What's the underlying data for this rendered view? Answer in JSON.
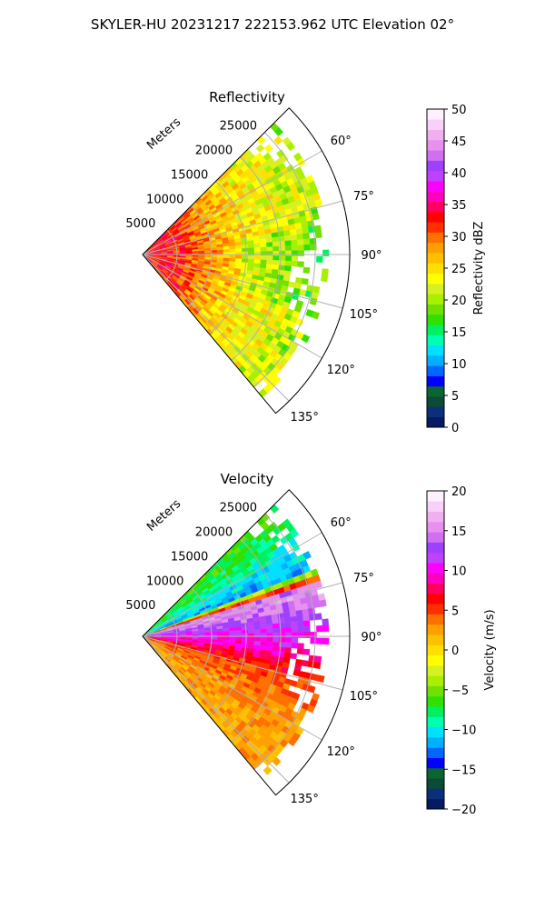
{
  "figure": {
    "title": "SKYLER-HU  20231217  222153.962 UTC Elevation 02°"
  },
  "chart_data": [
    {
      "type": "heatmap",
      "projection": "polar-sector",
      "title": "Reflectivity",
      "radial_label": "Meters",
      "radial_ticks": [
        "5000",
        "10000",
        "15000",
        "20000",
        "25000"
      ],
      "radial_tick_values": [
        5000,
        10000,
        15000,
        20000,
        25000
      ],
      "rlim": [
        0,
        30000
      ],
      "angle_ticks": [
        "60°",
        "75°",
        "90°",
        "105°",
        "120°",
        "135°"
      ],
      "angle_tick_values": [
        60,
        75,
        90,
        105,
        120,
        135
      ],
      "azimuth_range": [
        45,
        140
      ],
      "grid": true,
      "colorbar": {
        "label": "Reflectivity dBZ",
        "ticks": [
          "0",
          "5",
          "10",
          "15",
          "20",
          "25",
          "30",
          "35",
          "40",
          "45",
          "50"
        ],
        "range": [
          0,
          50
        ],
        "colors": [
          "#061a63",
          "#0b2f7a",
          "#0c4a3a",
          "#0a6630",
          "#0000ff",
          "#0066ff",
          "#00b0ff",
          "#00e0ff",
          "#00ffb0",
          "#00f060",
          "#30e000",
          "#70e000",
          "#a8f000",
          "#d8f020",
          "#ffff00",
          "#ffe000",
          "#ffc000",
          "#ffa000",
          "#ff7000",
          "#ff3000",
          "#ff0000",
          "#ff0060",
          "#ff00c0",
          "#ff00ff",
          "#c040ff",
          "#a040ff",
          "#d070f0",
          "#e890f0",
          "#f0b0f0",
          "#f8d0f8",
          "#fff0ff"
        ]
      },
      "field_profile": [
        {
          "range_m": 2000,
          "value": 33
        },
        {
          "range_m": 6000,
          "value": 32
        },
        {
          "range_m": 10000,
          "value": 28
        },
        {
          "range_m": 15000,
          "value": 25
        },
        {
          "range_m": 20000,
          "value": 23
        },
        {
          "range_m": 25000,
          "value": 21
        }
      ]
    },
    {
      "type": "heatmap",
      "projection": "polar-sector",
      "title": "Velocity",
      "radial_label": "Meters",
      "radial_ticks": [
        "5000",
        "10000",
        "15000",
        "20000",
        "25000"
      ],
      "radial_tick_values": [
        5000,
        10000,
        15000,
        20000,
        25000
      ],
      "rlim": [
        0,
        30000
      ],
      "angle_ticks": [
        "60°",
        "75°",
        "90°",
        "105°",
        "120°",
        "135°"
      ],
      "angle_tick_values": [
        60,
        75,
        90,
        105,
        120,
        135
      ],
      "azimuth_range": [
        45,
        140
      ],
      "grid": true,
      "colorbar": {
        "label": "Velocity (m/s)",
        "ticks": [
          "−20",
          "−15",
          "−10",
          "−5",
          "0",
          "5",
          "10",
          "15",
          "20"
        ],
        "range": [
          -20,
          20
        ],
        "colors": [
          "#061a63",
          "#0b2f7a",
          "#0c4a3a",
          "#0a6630",
          "#0000ff",
          "#0066ff",
          "#00b0ff",
          "#00e0ff",
          "#00ffb0",
          "#00f060",
          "#30e000",
          "#70e000",
          "#a8f000",
          "#d8f020",
          "#ffff00",
          "#ffe000",
          "#ffc000",
          "#ffa000",
          "#ff7000",
          "#ff3000",
          "#ff0000",
          "#ff0060",
          "#ff00c0",
          "#ff00ff",
          "#c040ff",
          "#a040ff",
          "#d070f0",
          "#e890f0",
          "#f0b0f0",
          "#f8d0f8",
          "#fff0ff"
        ]
      },
      "azimuth_profile": [
        {
          "azimuth_deg": 45,
          "value": -6
        },
        {
          "azimuth_deg": 55,
          "value": -8
        },
        {
          "azimuth_deg": 62,
          "value": -10
        },
        {
          "azimuth_deg": 68,
          "value": -12
        },
        {
          "azimuth_deg": 74,
          "value": 16
        },
        {
          "azimuth_deg": 80,
          "value": 14
        },
        {
          "azimuth_deg": 88,
          "value": 11
        },
        {
          "azimuth_deg": 96,
          "value": 9
        },
        {
          "azimuth_deg": 105,
          "value": 5
        },
        {
          "azimuth_deg": 120,
          "value": 3
        },
        {
          "azimuth_deg": 140,
          "value": 2
        }
      ]
    }
  ]
}
